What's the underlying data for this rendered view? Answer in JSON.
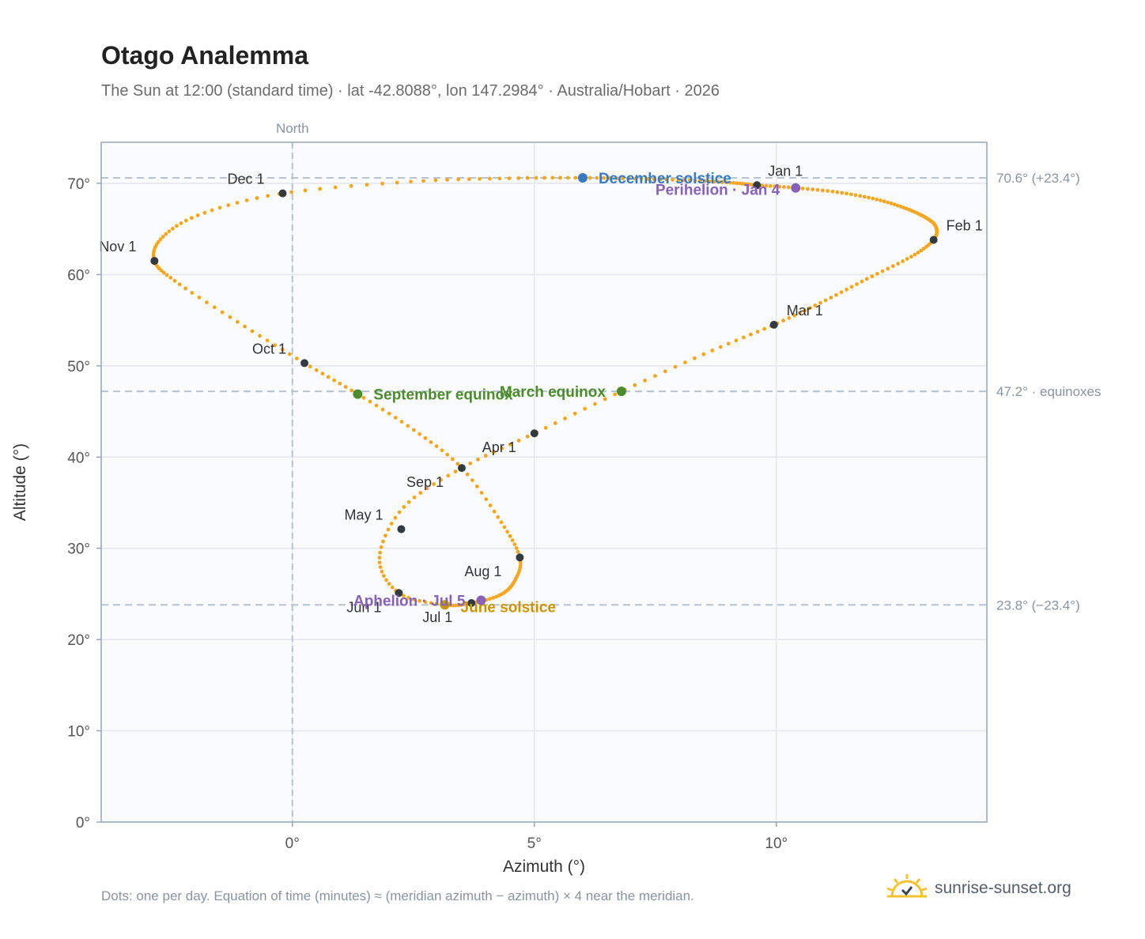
{
  "header": {
    "title": "Otago Analemma",
    "subtitle": "The Sun at 12:00 (standard time) · lat -42.8088°, lon 147.2984° · Australia/Hobart · 2026"
  },
  "footer": {
    "note": "Dots: one per day. Equation of time (minutes) ≈ (meridian azimuth − azimuth) × 4 near the meridian.",
    "brand": "sunrise-sunset.org",
    "brand_icon": "sun-check-icon"
  },
  "colors": {
    "curve": "#f5a623",
    "month_marker": "#333a40",
    "december_solstice": "#3a78c2",
    "june_solstice": "#c99400",
    "equinox": "#4e8a2e",
    "apsis": "#8a62b5",
    "plot_bg": "#f9fbfd",
    "grid": "#e3e8ee",
    "reference_line": "#b7c3ce"
  },
  "chart_data": {
    "type": "scatter",
    "xlabel": "Azimuth (°)",
    "ylabel": "Altitude (°)",
    "xlim": [
      -3.95,
      14.35
    ],
    "ylim": [
      0,
      74.5
    ],
    "x_ticks": [
      0,
      5,
      10
    ],
    "x_tick_labels": [
      "0°",
      "5°",
      "10°"
    ],
    "y_ticks": [
      0,
      10,
      20,
      30,
      40,
      50,
      60,
      70
    ],
    "y_tick_labels": [
      "0°",
      "10°",
      "20°",
      "30°",
      "40°",
      "50°",
      "60°",
      "70°"
    ],
    "grid": true,
    "meridian": {
      "x": 0,
      "label": "North"
    },
    "reference_lines": [
      {
        "y": 70.6,
        "label": "70.6° (+23.4°)"
      },
      {
        "y": 47.2,
        "label": "47.2° · equinoxes"
      },
      {
        "y": 23.8,
        "label": "23.8° (−23.4°)"
      }
    ],
    "month_markers": [
      {
        "label": "Jan 1",
        "x": 9.6,
        "y": 69.8
      },
      {
        "label": "Feb 1",
        "x": 13.25,
        "y": 63.8
      },
      {
        "label": "Mar 1",
        "x": 9.95,
        "y": 54.5
      },
      {
        "label": "Apr 1",
        "x": 5.0,
        "y": 42.6
      },
      {
        "label": "May 1",
        "x": 2.25,
        "y": 32.1
      },
      {
        "label": "Jun 1",
        "x": 2.2,
        "y": 25.1
      },
      {
        "label": "Jul 1",
        "x": 3.7,
        "y": 24.0
      },
      {
        "label": "Aug 1",
        "x": 4.7,
        "y": 29.0
      },
      {
        "label": "Sep 1",
        "x": 3.5,
        "y": 38.8
      },
      {
        "label": "Oct 1",
        "x": 0.25,
        "y": 50.3
      },
      {
        "label": "Nov 1",
        "x": -2.85,
        "y": 61.5
      },
      {
        "label": "Dec 1",
        "x": -0.2,
        "y": 68.9
      }
    ],
    "events": [
      {
        "label": "December solstice",
        "x": 6.0,
        "y": 70.6,
        "kind": "december_solstice"
      },
      {
        "label": "Perihelion · Jan 4",
        "x": 10.4,
        "y": 69.5,
        "kind": "apsis"
      },
      {
        "label": "March equinox",
        "x": 6.8,
        "y": 47.2,
        "kind": "equinox"
      },
      {
        "label": "September equinox",
        "x": 1.35,
        "y": 46.9,
        "kind": "equinox"
      },
      {
        "label": "June solstice",
        "x": 3.15,
        "y": 23.8,
        "kind": "june_solstice"
      },
      {
        "label": "Aphelion · Jul 5",
        "x": 3.9,
        "y": 24.3,
        "kind": "apsis"
      }
    ],
    "series": [
      {
        "description_days": "one dot per day",
        "x": [
          6.0,
          7.2,
          8.3,
          9.1,
          9.6,
          10.4,
          11.3,
          12.1,
          12.7,
          13.1,
          13.3,
          13.25,
          12.8,
          11.9,
          10.95,
          9.95,
          8.6,
          6.8,
          5.0,
          3.5,
          2.3,
          1.8,
          2.2,
          3.15,
          3.7,
          4.3,
          4.6,
          4.7,
          4.3,
          3.5,
          2.5,
          1.35,
          0.25,
          -1.1,
          -2.4,
          -2.85,
          -2.7,
          -1.9,
          -0.2,
          2.5,
          4.5,
          6.0
        ],
        "y": [
          70.6,
          70.5,
          70.3,
          70.05,
          69.8,
          69.5,
          69.0,
          68.2,
          67.2,
          66.2,
          65.2,
          63.8,
          62.0,
          59.6,
          57.0,
          54.5,
          51.5,
          47.2,
          42.6,
          38.8,
          34.5,
          29.0,
          25.1,
          23.8,
          24.0,
          24.9,
          26.5,
          29.0,
          33.0,
          38.8,
          43.0,
          46.9,
          50.3,
          54.7,
          59.2,
          61.5,
          64.0,
          66.6,
          68.9,
          70.2,
          70.55,
          70.6
        ]
      }
    ]
  }
}
